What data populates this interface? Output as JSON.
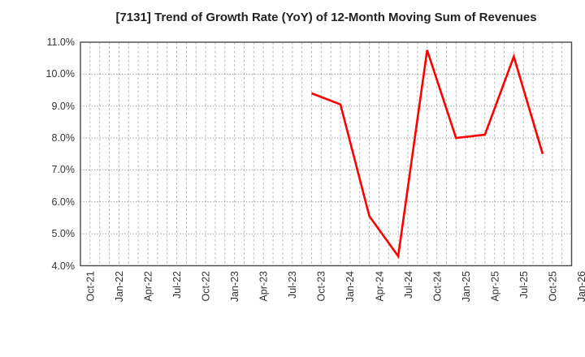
{
  "figure": {
    "title": "[7131]  Trend of Growth Rate (YoY) of 12-Month Moving Sum of Revenues"
  },
  "chart_data": {
    "type": "line",
    "title": "[7131]  Trend of Growth Rate (YoY) of 12-Month Moving Sum of Revenues",
    "x_categories": [
      "Oct-21",
      "Jan-22",
      "Apr-22",
      "Jul-22",
      "Oct-22",
      "Jan-23",
      "Apr-23",
      "Jul-23",
      "Oct-23",
      "Jan-24",
      "Apr-24",
      "Jul-24",
      "Oct-24",
      "Jan-25",
      "Apr-25",
      "Jul-25",
      "Oct-25",
      "Jan-26"
    ],
    "months_per_category": 3,
    "ylim": [
      4.0,
      11.0
    ],
    "ytick_step": 1.0,
    "ytick_labels": [
      "4.0%",
      "5.0%",
      "6.0%",
      "7.0%",
      "8.0%",
      "9.0%",
      "10.0%",
      "11.0%"
    ],
    "grid": true,
    "legend_visible": false,
    "line_color": "#ff0000",
    "series": [
      {
        "points": [
          {
            "x": "Oct-23",
            "y": 9.4
          },
          {
            "x": "Jan-24",
            "y": 9.05
          },
          {
            "x": "Apr-24",
            "y": 5.55
          },
          {
            "x": "Jul-24",
            "y": 4.3
          },
          {
            "x": "Oct-24",
            "y": 10.75
          },
          {
            "x": "Jan-25",
            "y": 8.0
          },
          {
            "x": "Apr-25",
            "y": 8.1
          },
          {
            "x": "Jul-25",
            "y": 10.55
          },
          {
            "x": "Oct-25",
            "y": 7.5
          }
        ]
      }
    ]
  }
}
